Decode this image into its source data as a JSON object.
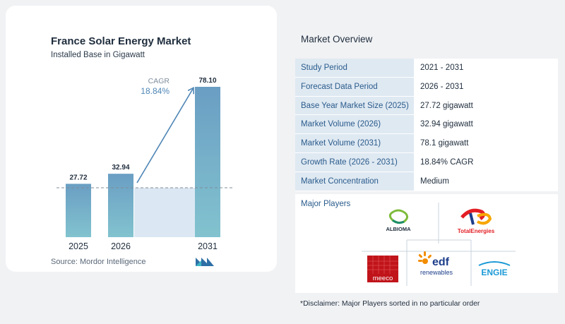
{
  "chart": {
    "title": "France Solar Energy Market",
    "subtitle": "Installed Base in Gigawatt",
    "cagr_label": "CAGR",
    "cagr_value": "18.84%",
    "source": "Source:  Mordor Intelligence"
  },
  "chart_data": {
    "type": "bar",
    "title": "France Solar Energy Market",
    "subtitle": "Installed Base in Gigawatt",
    "categories": [
      "2025",
      "2026",
      "2031"
    ],
    "values": [
      27.72,
      32.94,
      78.1
    ],
    "value_labels": [
      "27.72",
      "32.94",
      "78.10"
    ],
    "annotation": "CAGR 18.84%",
    "bar_color": "#6fa1c4",
    "grid": false
  },
  "overview": {
    "title": "Market Overview",
    "rows": [
      {
        "label": "Study Period",
        "value": "2021 - 2031"
      },
      {
        "label": "Forecast Data Period",
        "value": "2026 - 2031"
      },
      {
        "label": "Base Year Market Size (2025)",
        "value": "27.72 gigawatt"
      },
      {
        "label": "Market Volume (2026)",
        "value": "32.94 gigawatt"
      },
      {
        "label": "Market Volume (2031)",
        "value": "78.1 gigawatt"
      },
      {
        "label": "Growth Rate (2026 - 2031)",
        "value": "18.84% CAGR"
      },
      {
        "label": "Market Concentration",
        "value": "Medium"
      }
    ],
    "players_title": "Major Players",
    "players": {
      "albioma": "ALBIOMA",
      "total_line1": "TotalEnergies",
      "meeco": "meeco",
      "edf_line1": "edf",
      "edf_line2": "renewables",
      "engie": "ENGIE"
    },
    "disclaimer": "*Disclaimer: Major Players sorted in no particular order"
  },
  "colors": {
    "label_text": "#2a5b8c",
    "label_bg": "#dfe9f2",
    "bar": "#6fa1c4",
    "arrow": "#4f86b5"
  }
}
